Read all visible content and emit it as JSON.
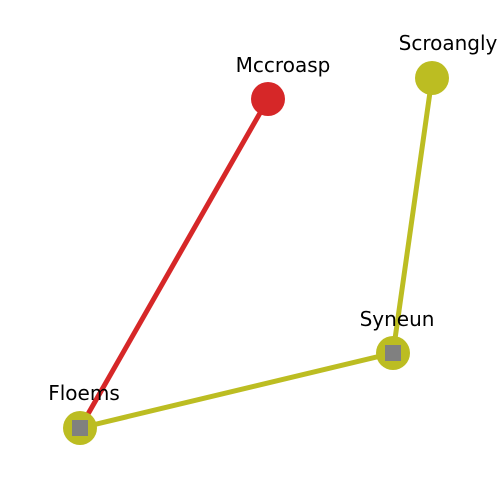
{
  "graph": {
    "nodes": [
      {
        "id": "mccroasp",
        "label": "Mccroasp",
        "color": "#d62728",
        "marker": ""
      },
      {
        "id": "scroangly",
        "label": "Scroangly",
        "color": "#bcbd22",
        "marker": ""
      },
      {
        "id": "syneun",
        "label": "Syneun",
        "color": "#bcbd22",
        "marker": "grey-square"
      },
      {
        "id": "floems",
        "label": "Floems",
        "color": "#bcbd22",
        "marker": "grey-square"
      }
    ],
    "edges": [
      {
        "from": "floems",
        "to": "mccroasp",
        "color": "#d62728"
      },
      {
        "from": "floems",
        "to": "syneun",
        "color": "#bcbd22"
      },
      {
        "from": "syneun",
        "to": "scroangly",
        "color": "#bcbd22"
      }
    ],
    "marker_color": "#808080"
  }
}
